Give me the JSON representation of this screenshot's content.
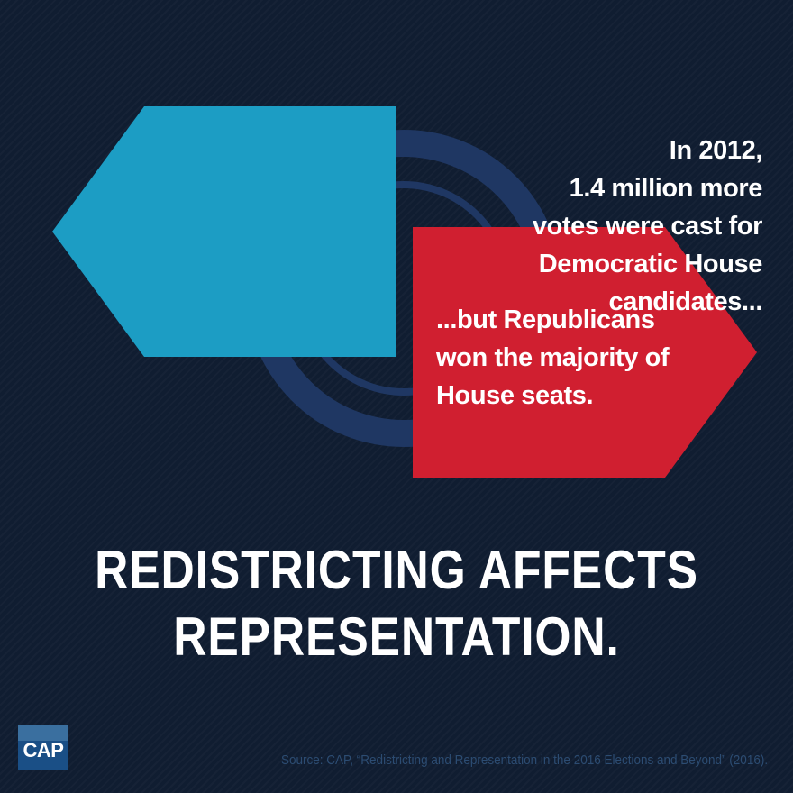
{
  "left_statement": {
    "lines": [
      "In 2012,",
      "1.4 million more",
      "votes were cast for",
      "Democratic House",
      "candidates..."
    ]
  },
  "right_statement": {
    "lines": [
      "...but Republicans",
      "won the majority of",
      "House seats."
    ]
  },
  "headline": {
    "lines": [
      "REDISTRICTING AFFECTS",
      "REPRESENTATION."
    ]
  },
  "logo": {
    "label": "CAP"
  },
  "source": {
    "text": "Source: CAP, “Redistricting and Representation in the 2016 Elections and Beyond” (2016)."
  },
  "colors": {
    "background": "#101d31",
    "ring": "#1f3763",
    "blue_arrow": "#1c9dc4",
    "red_arrow": "#d01f30",
    "text": "#ffffff",
    "source_text": "#2c4c72",
    "logo_bg": "#1a4f86"
  }
}
